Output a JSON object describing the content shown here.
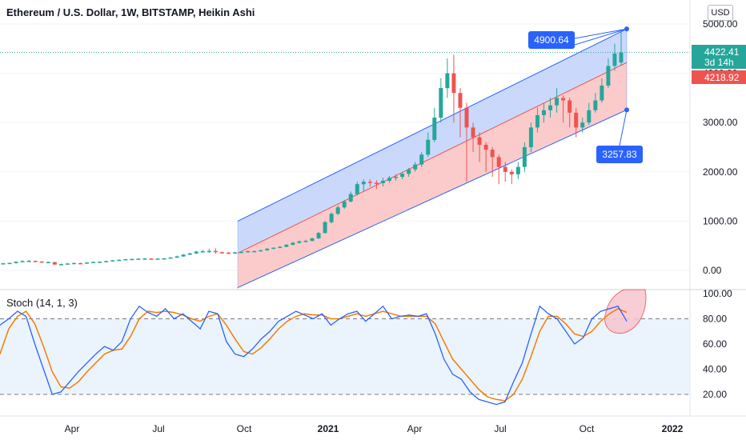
{
  "title": "Ethereum / U.S. Dollar, 1W, BITSTAMP, Heikin Ashi",
  "currency_button": "USD",
  "price_axis": {
    "ticks": [
      "5000.00",
      "4000.00",
      "3000.00",
      "2000.00",
      "1000.00",
      "0.00"
    ]
  },
  "price_tags": {
    "last": "4422.41",
    "countdown": "3d 14h",
    "open": "4218.92"
  },
  "channel_labels": {
    "upper": "4900.64",
    "lower": "3257.83"
  },
  "oscillator": {
    "title": "Stoch (14, 1, 3)",
    "ticks": [
      "100.00",
      "80.00",
      "60.00",
      "40.00",
      "20.00"
    ]
  },
  "time_axis": {
    "labels": [
      "Apr",
      "Jul",
      "Oct",
      "2021",
      "Apr",
      "Jul",
      "Oct",
      "2022"
    ]
  },
  "colors": {
    "up": "#26a69a",
    "down": "#ef5350",
    "blue_line": "#2962ff",
    "blue_fill": "#c4d5fb",
    "red_fill": "#fbc5c5",
    "stoch_k": "#2962ff",
    "stoch_d": "#f57c00",
    "highlight": "#f7c5cf"
  },
  "chart_data": {
    "type": "candlestick",
    "title": "Ethereum / U.S. Dollar, 1W, BITSTAMP, Heikin Ashi",
    "y_range": [
      -200,
      5300
    ],
    "candles": [
      [
        135,
        145,
        128,
        150
      ],
      [
        140,
        152,
        132,
        158
      ],
      [
        148,
        175,
        140,
        185
      ],
      [
        172,
        190,
        165,
        205
      ],
      [
        188,
        195,
        178,
        215
      ],
      [
        192,
        178,
        170,
        200
      ],
      [
        180,
        165,
        155,
        188
      ],
      [
        166,
        170,
        150,
        180
      ],
      [
        168,
        120,
        110,
        175
      ],
      [
        122,
        128,
        110,
        138
      ],
      [
        126,
        140,
        120,
        148
      ],
      [
        138,
        150,
        132,
        155
      ],
      [
        148,
        145,
        138,
        158
      ],
      [
        146,
        160,
        140,
        168
      ],
      [
        158,
        172,
        150,
        178
      ],
      [
        170,
        175,
        162,
        185
      ],
      [
        174,
        190,
        168,
        198
      ],
      [
        188,
        205,
        182,
        212
      ],
      [
        204,
        215,
        198,
        225
      ],
      [
        214,
        228,
        208,
        235
      ],
      [
        226,
        232,
        220,
        240
      ],
      [
        230,
        238,
        224,
        245
      ],
      [
        236,
        242,
        228,
        250
      ],
      [
        240,
        232,
        225,
        248
      ],
      [
        232,
        240,
        226,
        248
      ],
      [
        238,
        244,
        230,
        252
      ],
      [
        242,
        262,
        236,
        270
      ],
      [
        260,
        285,
        252,
        300
      ],
      [
        283,
        320,
        275,
        335
      ],
      [
        318,
        345,
        310,
        360
      ],
      [
        343,
        380,
        335,
        400
      ],
      [
        378,
        390,
        360,
        420
      ],
      [
        388,
        395,
        355,
        440
      ],
      [
        394,
        370,
        340,
        450
      ],
      [
        370,
        360,
        345,
        380
      ],
      [
        360,
        350,
        340,
        372
      ],
      [
        350,
        365,
        342,
        378
      ],
      [
        364,
        375,
        356,
        385
      ],
      [
        374,
        390,
        368,
        400
      ],
      [
        388,
        392,
        375,
        405
      ],
      [
        390,
        410,
        380,
        420
      ],
      [
        408,
        440,
        400,
        455
      ],
      [
        438,
        460,
        430,
        470
      ],
      [
        458,
        480,
        450,
        492
      ],
      [
        478,
        520,
        470,
        535
      ],
      [
        518,
        560,
        510,
        580
      ],
      [
        558,
        590,
        545,
        605
      ],
      [
        588,
        600,
        570,
        625
      ],
      [
        598,
        650,
        590,
        670
      ],
      [
        648,
        760,
        640,
        780
      ],
      [
        758,
        980,
        750,
        1000
      ],
      [
        978,
        1150,
        950,
        1180
      ],
      [
        1148,
        1280,
        1120,
        1320
      ],
      [
        1278,
        1400,
        1250,
        1430
      ],
      [
        1398,
        1550,
        1380,
        1600
      ],
      [
        1548,
        1750,
        1520,
        1800
      ],
      [
        1748,
        1800,
        1600,
        1850
      ],
      [
        1798,
        1780,
        1700,
        1850
      ],
      [
        1780,
        1770,
        1650,
        1830
      ],
      [
        1770,
        1820,
        1700,
        1880
      ],
      [
        1818,
        1880,
        1780,
        1920
      ],
      [
        1878,
        1900,
        1820,
        1950
      ],
      [
        1898,
        1960,
        1850,
        2000
      ],
      [
        1958,
        2050,
        1900,
        2080
      ],
      [
        2048,
        2150,
        2000,
        2200
      ],
      [
        2148,
        2350,
        2100,
        2400
      ],
      [
        2348,
        2650,
        2300,
        2800
      ],
      [
        2648,
        3100,
        2600,
        3300
      ],
      [
        3098,
        3700,
        3000,
        3900
      ],
      [
        3698,
        4000,
        3500,
        4300
      ],
      [
        3998,
        3600,
        3000,
        4380
      ],
      [
        3600,
        3300,
        2700,
        3700
      ],
      [
        3300,
        2900,
        1800,
        3400
      ],
      [
        2900,
        2700,
        2400,
        3000
      ],
      [
        2700,
        2550,
        2200,
        2800
      ],
      [
        2550,
        2450,
        2000,
        2600
      ],
      [
        2450,
        2300,
        1900,
        2500
      ],
      [
        2300,
        2100,
        1750,
        2350
      ],
      [
        2100,
        2000,
        1800,
        2200
      ],
      [
        2000,
        1950,
        1750,
        2050
      ],
      [
        1950,
        2100,
        1850,
        2200
      ],
      [
        2100,
        2500,
        2000,
        2600
      ],
      [
        2500,
        2900,
        2400,
        3000
      ],
      [
        2900,
        3150,
        2800,
        3300
      ],
      [
        3150,
        3250,
        3000,
        3400
      ],
      [
        3250,
        3350,
        3100,
        3500
      ],
      [
        3350,
        3500,
        3200,
        3700
      ],
      [
        3500,
        3450,
        3000,
        3550
      ],
      [
        3450,
        3200,
        2900,
        3500
      ],
      [
        3200,
        2900,
        2700,
        3300
      ],
      [
        2900,
        3000,
        2800,
        3100
      ],
      [
        3000,
        3250,
        2950,
        3400
      ],
      [
        3250,
        3450,
        3200,
        3600
      ],
      [
        3450,
        3750,
        3400,
        3900
      ],
      [
        3750,
        4150,
        3700,
        4300
      ],
      [
        4150,
        4400,
        4050,
        4600
      ],
      [
        4218.92,
        4422.41,
        4150,
        4868
      ]
    ],
    "regression_channel": {
      "upper": {
        "start": 1000,
        "end": 4900.64
      },
      "middle": {
        "start": 350,
        "end": 4218.92
      },
      "lower": {
        "start": -350,
        "end": 3257.83
      }
    },
    "stochastic": {
      "name": "Stoch (14, 1, 3)",
      "y_range": [
        0,
        100
      ],
      "levels": [
        80,
        20
      ],
      "k": [
        75,
        80,
        86,
        82,
        60,
        40,
        20,
        22,
        30,
        38,
        45,
        52,
        58,
        55,
        62,
        80,
        90,
        85,
        82,
        88,
        80,
        84,
        78,
        72,
        86,
        84,
        62,
        52,
        50,
        56,
        64,
        70,
        78,
        82,
        86,
        83,
        80,
        84,
        75,
        80,
        84,
        86,
        78,
        84,
        90,
        80,
        82,
        83,
        82,
        84,
        68,
        48,
        36,
        32,
        22,
        16,
        14,
        12,
        14,
        30,
        45,
        68,
        90,
        84,
        80,
        70,
        60,
        65,
        80,
        86,
        88,
        90,
        78
      ],
      "d": [
        52,
        72,
        82,
        86,
        76,
        58,
        38,
        26,
        25,
        30,
        38,
        45,
        52,
        55,
        56,
        66,
        80,
        86,
        85,
        86,
        85,
        83,
        80,
        78,
        82,
        84,
        75,
        64,
        54,
        52,
        57,
        64,
        72,
        78,
        82,
        84,
        83,
        83,
        80,
        80,
        82,
        84,
        82,
        84,
        86,
        84,
        82,
        82,
        82,
        82,
        76,
        62,
        48,
        40,
        32,
        24,
        18,
        16,
        15,
        20,
        32,
        50,
        70,
        82,
        82,
        76,
        68,
        66,
        70,
        78,
        84,
        88,
        85
      ]
    }
  }
}
